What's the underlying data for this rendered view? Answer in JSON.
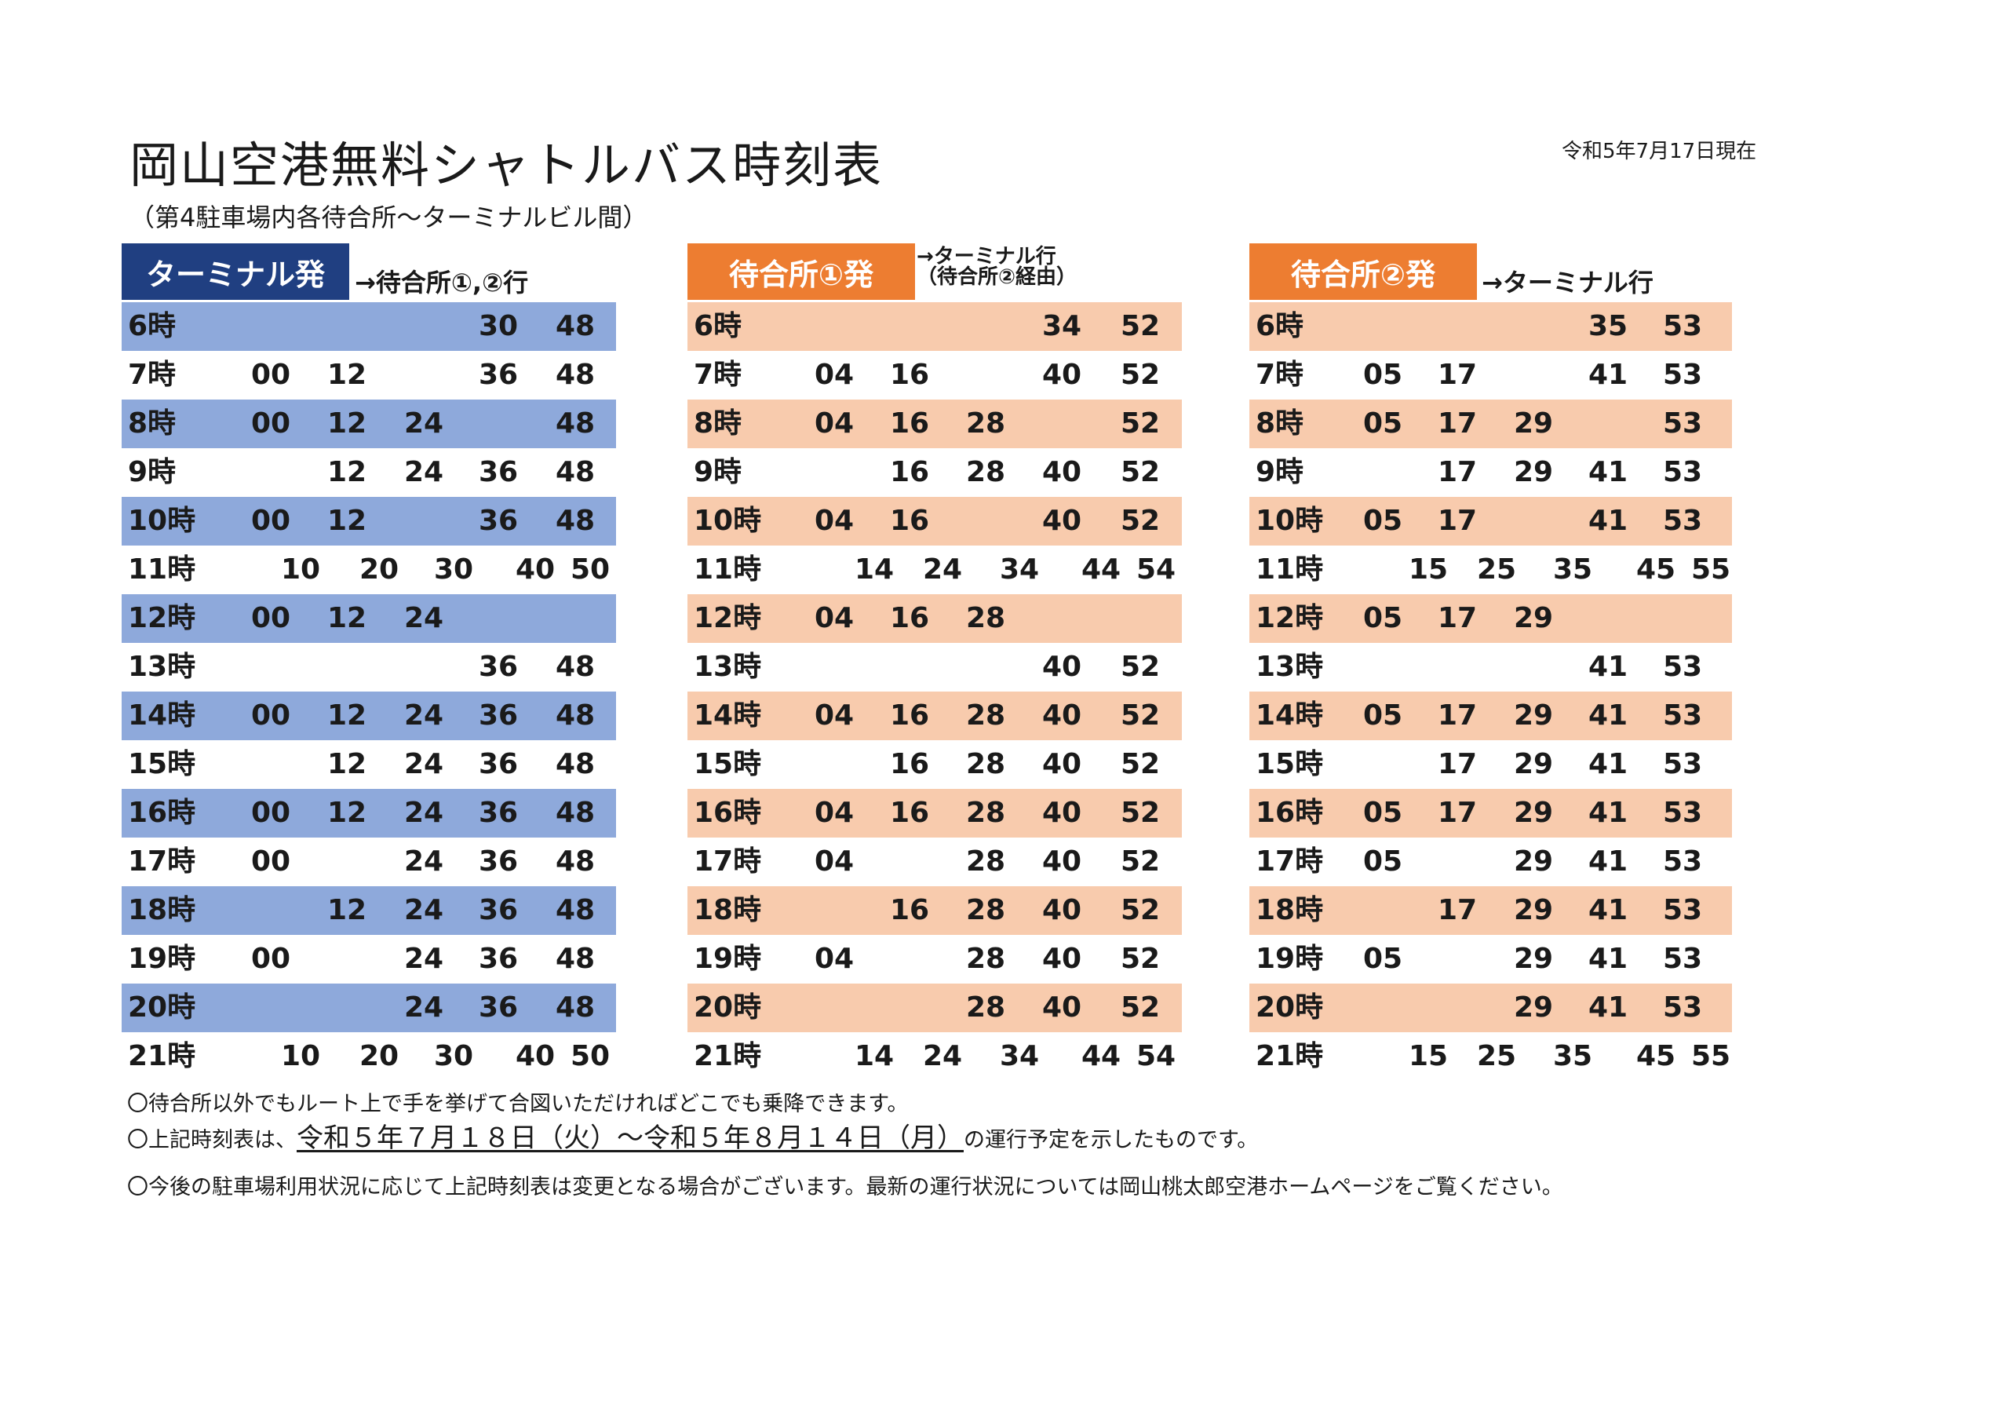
{
  "title": "岡山空港無料シャトルバス時刻表",
  "subtitle": "（第4駐車場内各待合所～ターミナルビル間）",
  "as_of": "令和5年7月17日現在",
  "colors": {
    "t1_header": "#203f81",
    "t1_band": "#8ea9db",
    "t2_header": "#ed7d31",
    "t2_band": "#f8cbad",
    "t3_header": "#ed7d31",
    "t3_band": "#f8cbad"
  },
  "tables": [
    {
      "header": "ターミナル発",
      "dest": "→待合所①,②行",
      "dest2": "",
      "rows": [
        {
          "hour": "6時",
          "mins": [
            "",
            "",
            "",
            "30",
            "48",
            ""
          ]
        },
        {
          "hour": "7時",
          "mins": [
            "00",
            "12",
            "",
            "36",
            "48",
            ""
          ]
        },
        {
          "hour": "8時",
          "mins": [
            "00",
            "12",
            "24",
            "",
            "48",
            ""
          ]
        },
        {
          "hour": "9時",
          "mins": [
            "",
            "12",
            "24",
            "36",
            "48",
            ""
          ]
        },
        {
          "hour": "10時",
          "mins": [
            "00",
            "12",
            "",
            "36",
            "48",
            ""
          ]
        },
        {
          "hour": "11時",
          "mins": [
            "10",
            "20",
            "30",
            "40",
            "50"
          ],
          "alt": true
        },
        {
          "hour": "12時",
          "mins": [
            "00",
            "12",
            "24",
            "",
            "",
            ""
          ]
        },
        {
          "hour": "13時",
          "mins": [
            "",
            "",
            "",
            "36",
            "48",
            ""
          ]
        },
        {
          "hour": "14時",
          "mins": [
            "00",
            "12",
            "24",
            "36",
            "48",
            ""
          ]
        },
        {
          "hour": "15時",
          "mins": [
            "",
            "12",
            "24",
            "36",
            "48",
            ""
          ]
        },
        {
          "hour": "16時",
          "mins": [
            "00",
            "12",
            "24",
            "36",
            "48",
            ""
          ]
        },
        {
          "hour": "17時",
          "mins": [
            "00",
            "",
            "24",
            "36",
            "48",
            ""
          ]
        },
        {
          "hour": "18時",
          "mins": [
            "",
            "12",
            "24",
            "36",
            "48",
            ""
          ]
        },
        {
          "hour": "19時",
          "mins": [
            "00",
            "",
            "24",
            "36",
            "48",
            ""
          ]
        },
        {
          "hour": "20時",
          "mins": [
            "",
            "",
            "24",
            "36",
            "48",
            ""
          ]
        },
        {
          "hour": "21時",
          "mins": [
            "10",
            "20",
            "30",
            "40",
            "50"
          ],
          "alt": true
        }
      ]
    },
    {
      "header": "待合所①発",
      "dest": "→ターミナル行",
      "dest2": "（待合所②経由）",
      "rows": [
        {
          "hour": "6時",
          "mins": [
            "",
            "",
            "",
            "34",
            "52",
            ""
          ]
        },
        {
          "hour": "7時",
          "mins": [
            "04",
            "16",
            "",
            "40",
            "52",
            ""
          ]
        },
        {
          "hour": "8時",
          "mins": [
            "04",
            "16",
            "28",
            "",
            "52",
            ""
          ]
        },
        {
          "hour": "9時",
          "mins": [
            "",
            "16",
            "28",
            "40",
            "52",
            ""
          ]
        },
        {
          "hour": "10時",
          "mins": [
            "04",
            "16",
            "",
            "40",
            "52",
            ""
          ]
        },
        {
          "hour": "11時",
          "mins": [
            "14",
            "24",
            "34",
            "44",
            "54"
          ],
          "alt": true
        },
        {
          "hour": "12時",
          "mins": [
            "04",
            "16",
            "28",
            "",
            "",
            ""
          ]
        },
        {
          "hour": "13時",
          "mins": [
            "",
            "",
            "",
            "40",
            "52",
            ""
          ]
        },
        {
          "hour": "14時",
          "mins": [
            "04",
            "16",
            "28",
            "40",
            "52",
            ""
          ]
        },
        {
          "hour": "15時",
          "mins": [
            "",
            "16",
            "28",
            "40",
            "52",
            ""
          ]
        },
        {
          "hour": "16時",
          "mins": [
            "04",
            "16",
            "28",
            "40",
            "52",
            ""
          ]
        },
        {
          "hour": "17時",
          "mins": [
            "04",
            "",
            "28",
            "40",
            "52",
            ""
          ]
        },
        {
          "hour": "18時",
          "mins": [
            "",
            "16",
            "28",
            "40",
            "52",
            ""
          ]
        },
        {
          "hour": "19時",
          "mins": [
            "04",
            "",
            "28",
            "40",
            "52",
            ""
          ]
        },
        {
          "hour": "20時",
          "mins": [
            "",
            "",
            "28",
            "40",
            "52",
            ""
          ]
        },
        {
          "hour": "21時",
          "mins": [
            "14",
            "24",
            "34",
            "44",
            "54"
          ],
          "alt": true
        }
      ]
    },
    {
      "header": "待合所②発",
      "dest": "→ターミナル行",
      "dest2": "",
      "rows": [
        {
          "hour": "6時",
          "mins": [
            "",
            "",
            "",
            "35",
            "53",
            ""
          ]
        },
        {
          "hour": "7時",
          "mins": [
            "05",
            "17",
            "",
            "41",
            "53",
            ""
          ]
        },
        {
          "hour": "8時",
          "mins": [
            "05",
            "17",
            "29",
            "",
            "53",
            ""
          ]
        },
        {
          "hour": "9時",
          "mins": [
            "",
            "17",
            "29",
            "41",
            "53",
            ""
          ]
        },
        {
          "hour": "10時",
          "mins": [
            "05",
            "17",
            "",
            "41",
            "53",
            ""
          ]
        },
        {
          "hour": "11時",
          "mins": [
            "15",
            "25",
            "35",
            "45",
            "55"
          ],
          "alt": true
        },
        {
          "hour": "12時",
          "mins": [
            "05",
            "17",
            "29",
            "",
            "",
            ""
          ]
        },
        {
          "hour": "13時",
          "mins": [
            "",
            "",
            "",
            "41",
            "53",
            ""
          ]
        },
        {
          "hour": "14時",
          "mins": [
            "05",
            "17",
            "29",
            "41",
            "53",
            ""
          ]
        },
        {
          "hour": "15時",
          "mins": [
            "",
            "17",
            "29",
            "41",
            "53",
            ""
          ]
        },
        {
          "hour": "16時",
          "mins": [
            "05",
            "17",
            "29",
            "41",
            "53",
            ""
          ]
        },
        {
          "hour": "17時",
          "mins": [
            "05",
            "",
            "29",
            "41",
            "53",
            ""
          ]
        },
        {
          "hour": "18時",
          "mins": [
            "",
            "17",
            "29",
            "41",
            "53",
            ""
          ]
        },
        {
          "hour": "19時",
          "mins": [
            "05",
            "",
            "29",
            "41",
            "53",
            ""
          ]
        },
        {
          "hour": "20時",
          "mins": [
            "",
            "",
            "29",
            "41",
            "53",
            ""
          ]
        },
        {
          "hour": "21時",
          "mins": [
            "15",
            "25",
            "35",
            "45",
            "55"
          ],
          "alt": true
        }
      ]
    }
  ],
  "notes": {
    "n1": "〇待合所以外でもルート上で手を挙げて合図いただければどこでも乗降できます。",
    "n2_pre": "〇上記時刻表は、",
    "n2_period": "令和５年７月１８日（火）～令和５年８月１４日（月）",
    "n2_post": "の運行予定を示したものです。",
    "n3": "〇今後の駐車場利用状況に応じて上記時刻表は変更となる場合がございます。最新の運行状況については岡山桃太郎空港ホームページをご覧ください。"
  }
}
